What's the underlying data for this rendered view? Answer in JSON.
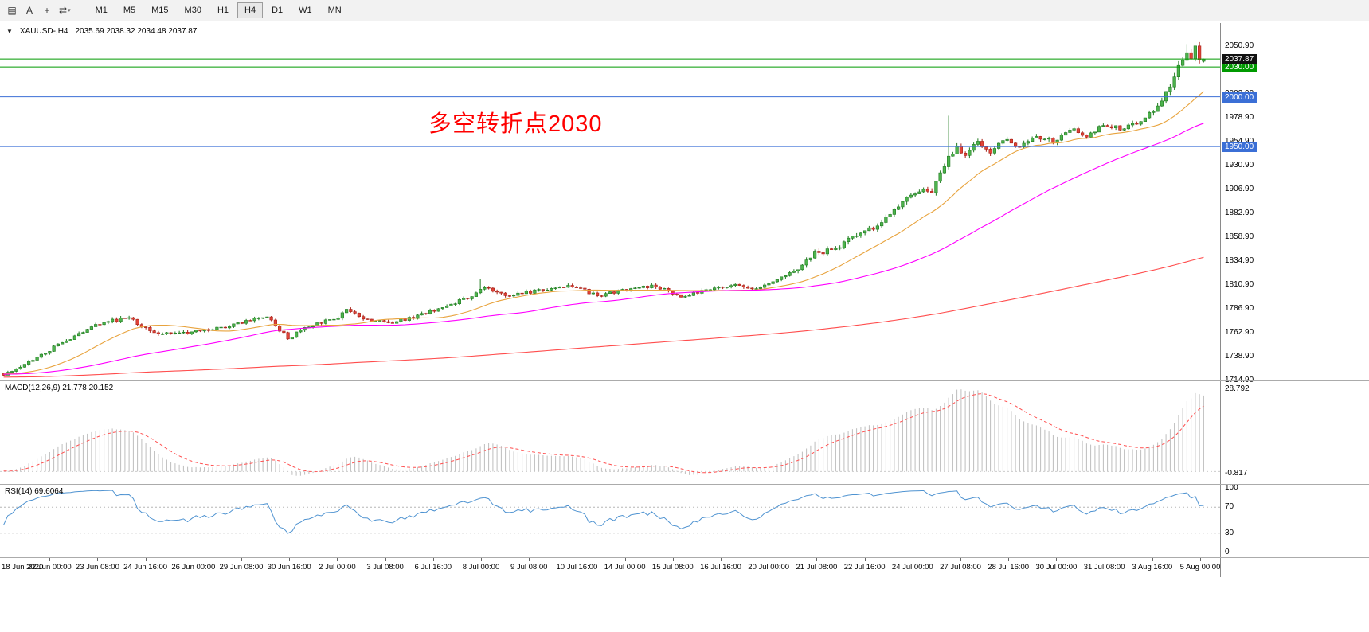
{
  "toolbar": {
    "tools": [
      {
        "name": "chart-window-icon",
        "glyph": "▤"
      },
      {
        "name": "text-annotation-icon",
        "glyph": "A"
      },
      {
        "name": "crosshair-icon",
        "glyph": "+"
      },
      {
        "name": "cycle-symbols-icon",
        "glyph": "⇄",
        "caret": "▾"
      }
    ],
    "timeframes": [
      {
        "label": "M1",
        "active": false
      },
      {
        "label": "M5",
        "active": false
      },
      {
        "label": "M15",
        "active": false
      },
      {
        "label": "M30",
        "active": false
      },
      {
        "label": "H1",
        "active": false
      },
      {
        "label": "H4",
        "active": true
      },
      {
        "label": "D1",
        "active": false
      },
      {
        "label": "W1",
        "active": false
      },
      {
        "label": "MN",
        "active": false
      }
    ]
  },
  "chart_header": {
    "collapse_marker": "▼",
    "symbol": "XAUUSD-,H4",
    "ohlc": "2035.69 2038.32 2034.48 2037.87"
  },
  "annotation": {
    "text": "多空转折点2030",
    "color": "#ff0000"
  },
  "price_scale": {
    "labels": [
      "2050.90",
      "2026.90",
      "2002.90",
      "1978.90",
      "1954.90",
      "1930.90",
      "1906.90",
      "1882.90",
      "1858.90",
      "1834.90",
      "1810.90",
      "1786.90",
      "1762.90",
      "1738.90",
      "1714.90"
    ],
    "current_badge": "2037.87",
    "badges": [
      {
        "text": "2030.00",
        "price": 2030,
        "color": "#009a00"
      },
      {
        "text": "2000.00",
        "price": 2000,
        "color": "#3b6fd6"
      },
      {
        "text": "1950.00",
        "price": 1950,
        "color": "#3b6fd6"
      }
    ]
  },
  "macd_pane": {
    "label": "MACD(12,26,9) 21.778 20.152",
    "scale_top": "28.792",
    "scale_bottom": "-0.817"
  },
  "rsi_pane": {
    "label": "RSI(14) 69.6064",
    "scale_labels": [
      {
        "text": "100",
        "value": 100
      },
      {
        "text": "70",
        "value": 70
      },
      {
        "text": "30",
        "value": 30
      },
      {
        "text": "0",
        "value": 0
      }
    ]
  },
  "time_scale": {
    "labels": [
      "18 Jun 2020",
      "22 Jun 00:00",
      "23 Jun 08:00",
      "24 Jun 16:00",
      "26 Jun 00:00",
      "29 Jun 08:00",
      "30 Jun 16:00",
      "2 Jul 00:00",
      "3 Jul 08:00",
      "6 Jul 16:00",
      "8 Jul 00:00",
      "9 Jul 08:00",
      "10 Jul 16:00",
      "14 Jul 00:00",
      "15 Jul 08:00",
      "16 Jul 16:00",
      "20 Jul 00:00",
      "21 Jul 08:00",
      "22 Jul 16:00",
      "24 Jul 00:00",
      "27 Jul 08:00",
      "28 Jul 16:00",
      "30 Jul 00:00",
      "31 Jul 08:00",
      "3 Aug 16:00",
      "5 Aug 00:00"
    ]
  },
  "chart_data": {
    "type": "candlestick",
    "symbol": "XAUUSD-",
    "timeframe": "H4",
    "current_ohlc": {
      "open": 2035.69,
      "high": 2038.32,
      "low": 2034.48,
      "close": 2037.87
    },
    "current_price": 2037.87,
    "bars": 288,
    "price_axis_min": 1714.9,
    "price_axis_max": 2073.3,
    "close_anchors": [
      [
        0,
        1720
      ],
      [
        4,
        1728
      ],
      [
        12,
        1748
      ],
      [
        22,
        1772
      ],
      [
        30,
        1778
      ],
      [
        36,
        1762
      ],
      [
        44,
        1763
      ],
      [
        52,
        1768
      ],
      [
        58,
        1774
      ],
      [
        63,
        1780
      ],
      [
        68,
        1757
      ],
      [
        74,
        1772
      ],
      [
        80,
        1777
      ],
      [
        82,
        1787
      ],
      [
        86,
        1776
      ],
      [
        92,
        1773
      ],
      [
        98,
        1778
      ],
      [
        106,
        1790
      ],
      [
        112,
        1800
      ],
      [
        115,
        1808
      ],
      [
        120,
        1801
      ],
      [
        128,
        1805
      ],
      [
        136,
        1810
      ],
      [
        142,
        1800
      ],
      [
        148,
        1806
      ],
      [
        156,
        1810
      ],
      [
        162,
        1799
      ],
      [
        168,
        1806
      ],
      [
        175,
        1810
      ],
      [
        180,
        1808
      ],
      [
        184,
        1815
      ],
      [
        190,
        1828
      ],
      [
        194,
        1843
      ],
      [
        198,
        1846
      ],
      [
        203,
        1858
      ],
      [
        208,
        1868
      ],
      [
        213,
        1888
      ],
      [
        217,
        1902
      ],
      [
        222,
        1906
      ],
      [
        226,
        1940
      ],
      [
        228,
        1948
      ],
      [
        230,
        1942
      ],
      [
        233,
        1955
      ],
      [
        236,
        1945
      ],
      [
        239,
        1958
      ],
      [
        243,
        1950
      ],
      [
        247,
        1960
      ],
      [
        251,
        1955
      ],
      [
        255,
        1968
      ],
      [
        259,
        1960
      ],
      [
        263,
        1972
      ],
      [
        267,
        1968
      ],
      [
        271,
        1974
      ],
      [
        274,
        1982
      ],
      [
        277,
        1996
      ],
      [
        279,
        2012
      ],
      [
        281,
        2032
      ],
      [
        283,
        2048
      ],
      [
        284,
        2041
      ],
      [
        285,
        2049
      ],
      [
        286,
        2038
      ],
      [
        287,
        2037.87
      ]
    ],
    "volatility_anchors": [
      [
        0,
        1.8
      ],
      [
        20,
        2.2
      ],
      [
        60,
        2.4
      ],
      [
        100,
        2.2
      ],
      [
        180,
        2.2
      ],
      [
        190,
        3.2
      ],
      [
        235,
        3.6
      ],
      [
        260,
        2.6
      ],
      [
        274,
        3.2
      ],
      [
        281,
        5.0
      ],
      [
        288,
        5.0
      ]
    ],
    "wick_spikes": [
      [
        114,
        1817
      ],
      [
        226,
        1981
      ],
      [
        283,
        2053
      ]
    ],
    "prehistory": {
      "bars": 300,
      "start_price": 1714,
      "end_price": 1722
    },
    "levels": [
      {
        "name": "hline-2038",
        "price": 2038.0,
        "color": "#009a00"
      },
      {
        "name": "hline-2030",
        "price": 2030.0,
        "color": "#009a00"
      },
      {
        "name": "hline-2000",
        "price": 2000.0,
        "color": "#3b6fd6"
      },
      {
        "name": "hline-1950",
        "price": 1950.0,
        "color": "#3b6fd6"
      }
    ],
    "moving_averages": [
      {
        "period": 20,
        "color": "#e8a33d"
      },
      {
        "period": 60,
        "color": "#ff00ff"
      },
      {
        "period": 280,
        "color": "#ff4d4d"
      }
    ],
    "macd": {
      "fast": 12,
      "slow": 26,
      "signal": 9,
      "display_max": 28.792,
      "histogram_color": "#bdbdbd",
      "signal_color": "#ff5050"
    },
    "rsi": {
      "period": 14,
      "color": "#4f93d1",
      "guide_levels": [
        70,
        30
      ]
    },
    "candle_colors": {
      "up_fill": "#4db34d",
      "up_stroke": "#1f7a1f",
      "down_fill": "#e04338",
      "down_stroke": "#a61f16"
    }
  }
}
